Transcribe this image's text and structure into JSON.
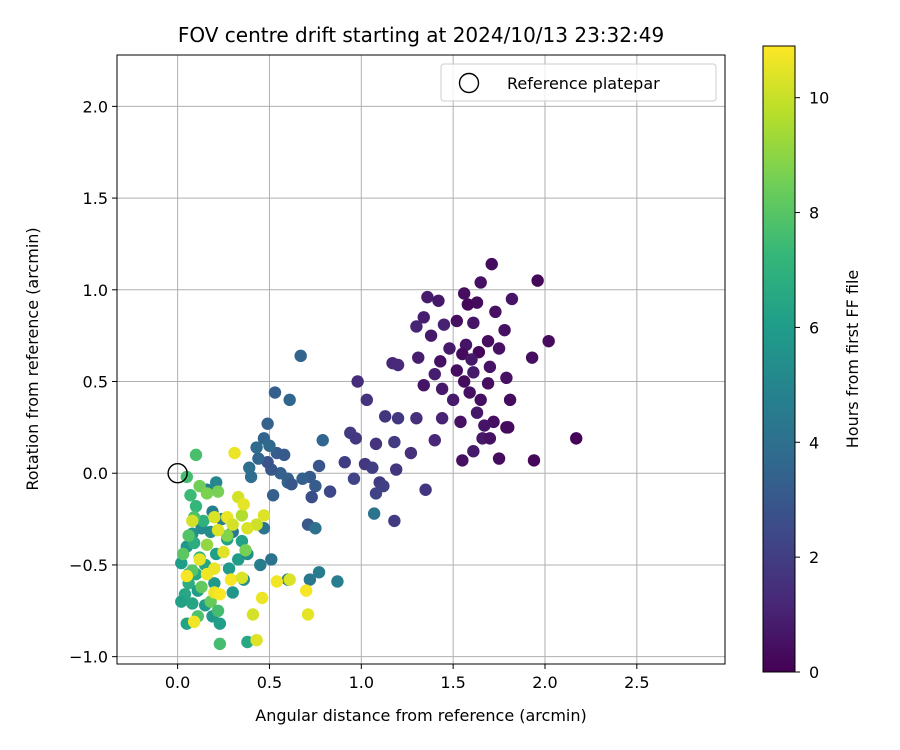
{
  "chart_data": {
    "type": "scatter",
    "title": "FOV centre drift starting at 2024/10/13 23:32:49",
    "xlabel": "Angular distance from reference (arcmin)",
    "ylabel": "Rotation from reference (arcmin)",
    "xlim": [
      -0.33,
      2.98
    ],
    "ylim": [
      -1.04,
      2.28
    ],
    "xticks": [
      0.0,
      0.5,
      1.0,
      1.5,
      2.0,
      2.5
    ],
    "xtick_labels": [
      "0.0",
      "0.5",
      "1.0",
      "1.5",
      "2.0",
      "2.5"
    ],
    "yticks": [
      -1.0,
      -0.5,
      0.0,
      0.5,
      1.0,
      1.5,
      2.0
    ],
    "ytick_labels": [
      "−1.0",
      "−0.5",
      "0.0",
      "0.5",
      "1.0",
      "1.5",
      "2.0"
    ],
    "grid": true,
    "legend": {
      "placement": "upper-right",
      "entries": [
        {
          "label": "Reference platepar",
          "marker": "open-circle"
        }
      ]
    },
    "reference_point": {
      "x": 0.0,
      "y": 0.0
    },
    "colorbar": {
      "label": "Hours from first FF file",
      "colormap": "viridis",
      "range": [
        0,
        10.9
      ],
      "ticks": [
        0,
        2,
        4,
        6,
        8,
        10
      ],
      "tick_labels": [
        "0",
        "2",
        "4",
        "6",
        "8",
        "10"
      ],
      "colormap_stops": [
        "#440154",
        "#482878",
        "#3e4989",
        "#31688e",
        "#26828e",
        "#1f9e89",
        "#35b779",
        "#6ece58",
        "#b5de2b",
        "#fde725"
      ]
    },
    "points_format": [
      "x",
      "y",
      "hours"
    ],
    "points": [
      [
        1.71,
        1.14,
        0.3
      ],
      [
        1.96,
        1.05,
        0.2
      ],
      [
        1.65,
        1.04,
        0.5
      ],
      [
        1.56,
        0.98,
        0.4
      ],
      [
        1.36,
        0.96,
        0.8
      ],
      [
        1.82,
        0.95,
        0.6
      ],
      [
        1.42,
        0.94,
        0.7
      ],
      [
        1.63,
        0.93,
        0.3
      ],
      [
        1.58,
        0.92,
        0.2
      ],
      [
        1.73,
        0.88,
        0.5
      ],
      [
        1.34,
        0.85,
        0.9
      ],
      [
        1.52,
        0.83,
        0.4
      ],
      [
        1.61,
        0.82,
        0.6
      ],
      [
        1.45,
        0.81,
        1.0
      ],
      [
        1.3,
        0.8,
        1.1
      ],
      [
        1.78,
        0.78,
        0.5
      ],
      [
        1.38,
        0.75,
        0.7
      ],
      [
        1.69,
        0.72,
        0.4
      ],
      [
        2.02,
        0.72,
        0.3
      ],
      [
        1.57,
        0.7,
        0.6
      ],
      [
        1.48,
        0.68,
        0.8
      ],
      [
        1.75,
        0.68,
        0.5
      ],
      [
        1.64,
        0.66,
        0.2
      ],
      [
        1.55,
        0.65,
        0.3
      ],
      [
        1.31,
        0.63,
        0.9
      ],
      [
        1.93,
        0.63,
        0.4
      ],
      [
        1.6,
        0.62,
        0.7
      ],
      [
        1.43,
        0.61,
        0.5
      ],
      [
        1.17,
        0.6,
        1.2
      ],
      [
        1.2,
        0.59,
        1.3
      ],
      [
        1.7,
        0.58,
        0.6
      ],
      [
        1.52,
        0.56,
        0.4
      ],
      [
        1.61,
        0.55,
        0.8
      ],
      [
        1.4,
        0.54,
        0.9
      ],
      [
        1.79,
        0.52,
        0.5
      ],
      [
        0.98,
        0.5,
        1.4
      ],
      [
        1.56,
        0.5,
        0.3
      ],
      [
        1.69,
        0.49,
        0.4
      ],
      [
        1.34,
        0.48,
        0.6
      ],
      [
        1.44,
        0.46,
        0.7
      ],
      [
        1.59,
        0.44,
        0.5
      ],
      [
        1.5,
        0.4,
        0.8
      ],
      [
        1.65,
        0.4,
        0.4
      ],
      [
        1.81,
        0.4,
        0.3
      ],
      [
        1.03,
        0.4,
        1.6
      ],
      [
        1.13,
        0.31,
        1.7
      ],
      [
        1.2,
        0.3,
        1.8
      ],
      [
        1.3,
        0.3,
        1.5
      ],
      [
        1.44,
        0.3,
        1.1
      ],
      [
        1.63,
        0.33,
        0.7
      ],
      [
        1.72,
        0.28,
        0.4
      ],
      [
        1.54,
        0.28,
        0.5
      ],
      [
        1.67,
        0.26,
        0.6
      ],
      [
        1.79,
        0.25,
        0.2
      ],
      [
        1.8,
        0.25,
        0.3
      ],
      [
        0.94,
        0.22,
        1.9
      ],
      [
        0.97,
        0.19,
        1.8
      ],
      [
        1.66,
        0.19,
        0.7
      ],
      [
        1.7,
        0.19,
        0.5
      ],
      [
        1.4,
        0.18,
        1.2
      ],
      [
        2.17,
        0.19,
        0.1
      ],
      [
        1.08,
        0.16,
        1.6
      ],
      [
        1.18,
        0.17,
        1.9
      ],
      [
        1.61,
        0.12,
        0.8
      ],
      [
        1.27,
        0.11,
        1.5
      ],
      [
        1.75,
        0.08,
        0.3
      ],
      [
        1.55,
        0.07,
        0.5
      ],
      [
        1.94,
        0.07,
        0.2
      ],
      [
        0.91,
        0.06,
        2.0
      ],
      [
        1.02,
        0.05,
        1.8
      ],
      [
        1.19,
        0.02,
        1.7
      ],
      [
        1.06,
        0.03,
        2.0
      ],
      [
        0.96,
        -0.03,
        2.2
      ],
      [
        1.1,
        -0.05,
        1.9
      ],
      [
        1.12,
        -0.07,
        2.1
      ],
      [
        1.35,
        -0.09,
        1.7
      ],
      [
        1.08,
        -0.11,
        2.2
      ],
      [
        1.18,
        -0.26,
        1.9
      ],
      [
        0.83,
        -0.1,
        2.4
      ],
      [
        0.79,
        0.18,
        3.6
      ],
      [
        0.72,
        -0.02,
        3.1
      ],
      [
        0.77,
        0.04,
        2.9
      ],
      [
        0.68,
        -0.03,
        3.3
      ],
      [
        0.6,
        -0.05,
        3.5
      ],
      [
        0.56,
        0.0,
        3.4
      ],
      [
        0.51,
        0.02,
        3.0
      ],
      [
        0.49,
        0.06,
        2.8
      ],
      [
        0.54,
        0.11,
        3.2
      ],
      [
        0.58,
        0.1,
        3.1
      ],
      [
        0.44,
        0.08,
        3.6
      ],
      [
        0.43,
        0.14,
        3.8
      ],
      [
        0.47,
        0.19,
        3.5
      ],
      [
        0.5,
        0.15,
        3.7
      ],
      [
        0.49,
        0.27,
        3.4
      ],
      [
        0.53,
        0.44,
        3.3
      ],
      [
        0.61,
        0.4,
        3.6
      ],
      [
        0.67,
        0.64,
        3.5
      ],
      [
        0.39,
        0.03,
        4.0
      ],
      [
        0.4,
        -0.02,
        3.9
      ],
      [
        0.6,
        -0.03,
        3.4
      ],
      [
        0.52,
        -0.12,
        3.3
      ],
      [
        0.62,
        -0.06,
        3.0
      ],
      [
        0.75,
        -0.07,
        3.2
      ],
      [
        0.73,
        -0.13,
        2.6
      ],
      [
        0.71,
        -0.28,
        3.0
      ],
      [
        0.75,
        -0.3,
        4.0
      ],
      [
        1.07,
        -0.22,
        4.2
      ],
      [
        0.47,
        -0.3,
        4.3
      ],
      [
        0.51,
        -0.47,
        4.2
      ],
      [
        0.45,
        -0.5,
        4.5
      ],
      [
        0.6,
        -0.58,
        4.3
      ],
      [
        0.72,
        -0.58,
        4.4
      ],
      [
        0.77,
        -0.54,
        4.5
      ],
      [
        0.87,
        -0.59,
        4.6
      ],
      [
        0.3,
        -0.32,
        4.4
      ],
      [
        0.24,
        -0.25,
        4.6
      ],
      [
        0.19,
        -0.21,
        4.7
      ],
      [
        0.16,
        -0.09,
        4.8
      ],
      [
        0.21,
        -0.05,
        5.0
      ],
      [
        0.18,
        -0.32,
        5.3
      ],
      [
        0.13,
        -0.3,
        5.2
      ],
      [
        0.08,
        -0.33,
        5.6
      ],
      [
        0.05,
        -0.4,
        5.7
      ],
      [
        0.02,
        -0.49,
        6.0
      ],
      [
        0.06,
        -0.55,
        6.2
      ],
      [
        0.04,
        -0.66,
        6.5
      ],
      [
        0.02,
        -0.7,
        6.2
      ],
      [
        0.08,
        -0.71,
        6.4
      ],
      [
        0.15,
        -0.72,
        5.9
      ],
      [
        0.19,
        -0.78,
        5.8
      ],
      [
        0.23,
        -0.82,
        6.1
      ],
      [
        0.05,
        -0.82,
        6.3
      ],
      [
        0.11,
        -0.64,
        6.0
      ],
      [
        0.2,
        -0.6,
        5.8
      ],
      [
        0.3,
        -0.65,
        5.7
      ],
      [
        0.36,
        -0.58,
        5.5
      ],
      [
        0.28,
        -0.52,
        5.9
      ],
      [
        0.33,
        -0.47,
        6.0
      ],
      [
        0.38,
        -0.44,
        5.4
      ],
      [
        0.35,
        -0.37,
        6.2
      ],
      [
        0.27,
        -0.36,
        6.3
      ],
      [
        0.21,
        -0.44,
        6.1
      ],
      [
        0.15,
        -0.5,
        6.4
      ],
      [
        0.1,
        -0.55,
        6.5
      ],
      [
        0.06,
        -0.6,
        6.8
      ],
      [
        0.12,
        -0.46,
        7.0
      ],
      [
        0.09,
        -0.38,
        6.8
      ],
      [
        0.14,
        -0.26,
        7.0
      ],
      [
        0.1,
        -0.18,
        7.2
      ],
      [
        0.07,
        -0.12,
        7.4
      ],
      [
        0.05,
        -0.02,
        7.6
      ],
      [
        0.1,
        0.1,
        7.7
      ],
      [
        0.09,
        -0.24,
        7.8
      ],
      [
        0.06,
        -0.34,
        7.9
      ],
      [
        0.03,
        -0.44,
        8.1
      ],
      [
        0.08,
        -0.53,
        8.0
      ],
      [
        0.13,
        -0.62,
        8.2
      ],
      [
        0.18,
        -0.7,
        8.3
      ],
      [
        0.22,
        -0.75,
        7.6
      ],
      [
        0.38,
        -0.92,
        6.5
      ],
      [
        0.23,
        -0.93,
        7.6
      ],
      [
        0.11,
        -0.78,
        7.8
      ],
      [
        0.12,
        -0.07,
        8.5
      ],
      [
        0.16,
        -0.11,
        8.7
      ],
      [
        0.22,
        -0.1,
        8.6
      ],
      [
        0.27,
        -0.34,
        8.8
      ],
      [
        0.37,
        -0.42,
        8.6
      ],
      [
        0.35,
        -0.23,
        9.6
      ],
      [
        0.16,
        -0.39,
        9.1
      ],
      [
        0.2,
        -0.24,
        10.3
      ],
      [
        0.22,
        -0.31,
        10.4
      ],
      [
        0.27,
        -0.24,
        10.6
      ],
      [
        0.33,
        -0.13,
        10.2
      ],
      [
        0.36,
        -0.17,
        10.5
      ],
      [
        0.31,
        0.11,
        10.6
      ],
      [
        0.43,
        -0.28,
        10.1
      ],
      [
        0.47,
        -0.23,
        10.4
      ],
      [
        0.08,
        -0.26,
        10.2
      ],
      [
        0.12,
        -0.47,
        10.5
      ],
      [
        0.16,
        -0.55,
        10.7
      ],
      [
        0.2,
        -0.52,
        10.6
      ],
      [
        0.25,
        -0.43,
        10.4
      ],
      [
        0.29,
        -0.58,
        10.8
      ],
      [
        0.35,
        -0.57,
        10.3
      ],
      [
        0.41,
        -0.77,
        10.2
      ],
      [
        0.46,
        -0.68,
        10.6
      ],
      [
        0.54,
        -0.59,
        10.7
      ],
      [
        0.61,
        -0.58,
        10.3
      ],
      [
        0.7,
        -0.64,
        10.8
      ],
      [
        0.71,
        -0.77,
        10.5
      ],
      [
        0.43,
        -0.91,
        10.4
      ],
      [
        0.2,
        -0.65,
        10.6
      ],
      [
        0.23,
        -0.66,
        10.9
      ],
      [
        0.09,
        -0.81,
        10.7
      ],
      [
        0.05,
        -0.56,
        10.8
      ],
      [
        0.3,
        -0.28,
        10.2
      ],
      [
        0.38,
        -0.3,
        10.3
      ]
    ]
  }
}
